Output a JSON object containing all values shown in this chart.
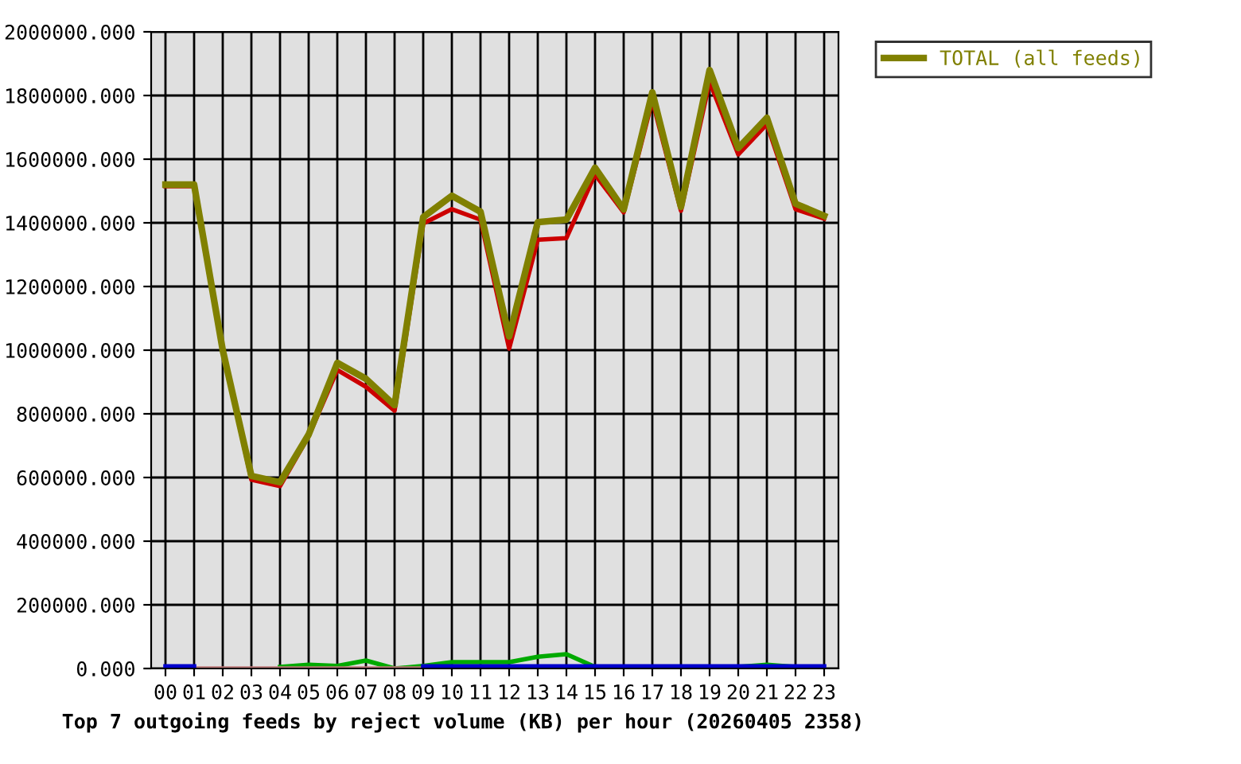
{
  "chart_data": {
    "type": "line",
    "xlabel": "Top 7 outgoing feeds by reject volume (KB) per hour (20260405 2358)",
    "categories": [
      "00",
      "01",
      "02",
      "03",
      "04",
      "05",
      "06",
      "07",
      "08",
      "09",
      "10",
      "11",
      "12",
      "13",
      "14",
      "15",
      "16",
      "17",
      "18",
      "19",
      "20",
      "21",
      "22",
      "23"
    ],
    "series": [
      {
        "color": "#cc0000",
        "values": [
          1515000,
          1515000,
          1000000,
          593000,
          573000,
          730000,
          938000,
          885000,
          810000,
          1398000,
          1443000,
          1410000,
          1005000,
          1347000,
          1352000,
          1552000,
          1433000,
          1785000,
          1438000,
          1843000,
          1615000,
          1710000,
          1443000,
          1413000
        ]
      },
      {
        "color": "#00aa00",
        "values": [
          null,
          null,
          null,
          null,
          5000,
          12000,
          8000,
          25000,
          0,
          8000,
          20000,
          20000,
          20000,
          37000,
          45000,
          5000,
          null,
          null,
          null,
          null,
          5000,
          12000,
          5000,
          null
        ]
      },
      {
        "color": "#0000cc",
        "values": [
          7000,
          7000,
          null,
          null,
          null,
          null,
          null,
          null,
          null,
          7000,
          7000,
          7000,
          7000,
          7000,
          7000,
          7000,
          7000,
          7000,
          7000,
          7000,
          7000,
          7000,
          7000,
          7000
        ]
      },
      {
        "color": "#bb7777",
        "values": [
          null,
          0,
          0,
          0,
          0,
          0,
          0,
          0,
          0,
          0,
          null,
          null,
          null,
          null,
          null,
          null,
          null,
          null,
          null,
          null,
          null,
          null,
          null,
          null
        ]
      },
      {
        "name": "TOTAL (all feeds)",
        "color": "#808000",
        "values": [
          1520000,
          1520000,
          1000000,
          605000,
          585000,
          735000,
          960000,
          910000,
          827000,
          1418000,
          1485000,
          1435000,
          1043000,
          1402000,
          1410000,
          1573000,
          1442000,
          1810000,
          1450000,
          1880000,
          1635000,
          1730000,
          1460000,
          1422000
        ]
      }
    ],
    "ylim": [
      0,
      2000000
    ],
    "yticks": [
      {
        "value": 0,
        "label": "0.000"
      },
      {
        "value": 200000,
        "label": "200000.000"
      },
      {
        "value": 400000,
        "label": "400000.000"
      },
      {
        "value": 600000,
        "label": "600000.000"
      },
      {
        "value": 800000,
        "label": "800000.000"
      },
      {
        "value": 1000000,
        "label": "1000000.000"
      },
      {
        "value": 1200000,
        "label": "1200000.000"
      },
      {
        "value": 1400000,
        "label": "1400000.000"
      },
      {
        "value": 1600000,
        "label": "1600000.000"
      },
      {
        "value": 1800000,
        "label": "1800000.000"
      },
      {
        "value": 2000000,
        "label": "2000000.000"
      }
    ],
    "grid": true,
    "legend": "right",
    "marker": "none",
    "line_style": "solid"
  }
}
